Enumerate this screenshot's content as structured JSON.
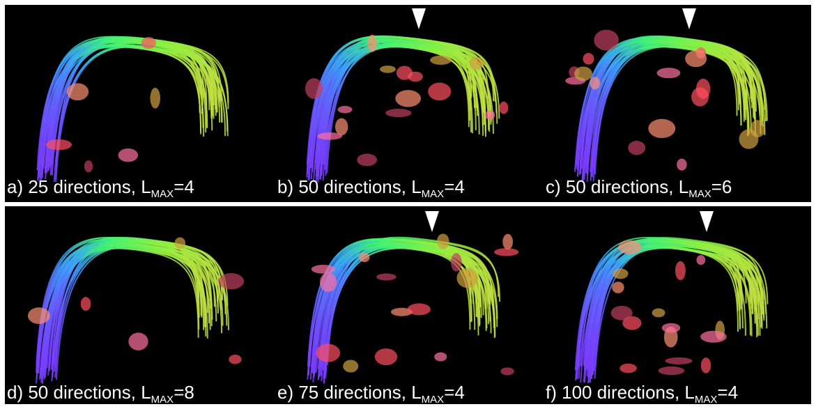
{
  "panels": [
    {
      "label": "a) 25 directions, L",
      "sub": "MAX",
      "tail": "=4"
    },
    {
      "label": "b) 50 directions, L",
      "sub": "MAX",
      "tail": "=4"
    },
    {
      "label": "c) 50 directions, L",
      "sub": "MAX",
      "tail": "=6"
    },
    {
      "label": "d) 50 directions, L",
      "sub": "MAX",
      "tail": "=8"
    },
    {
      "label": "e) 75 directions, L",
      "sub": "MAX",
      "tail": "=4"
    },
    {
      "label": "f) 100 directions, L",
      "sub": "MAX",
      "tail": "=4"
    }
  ]
}
